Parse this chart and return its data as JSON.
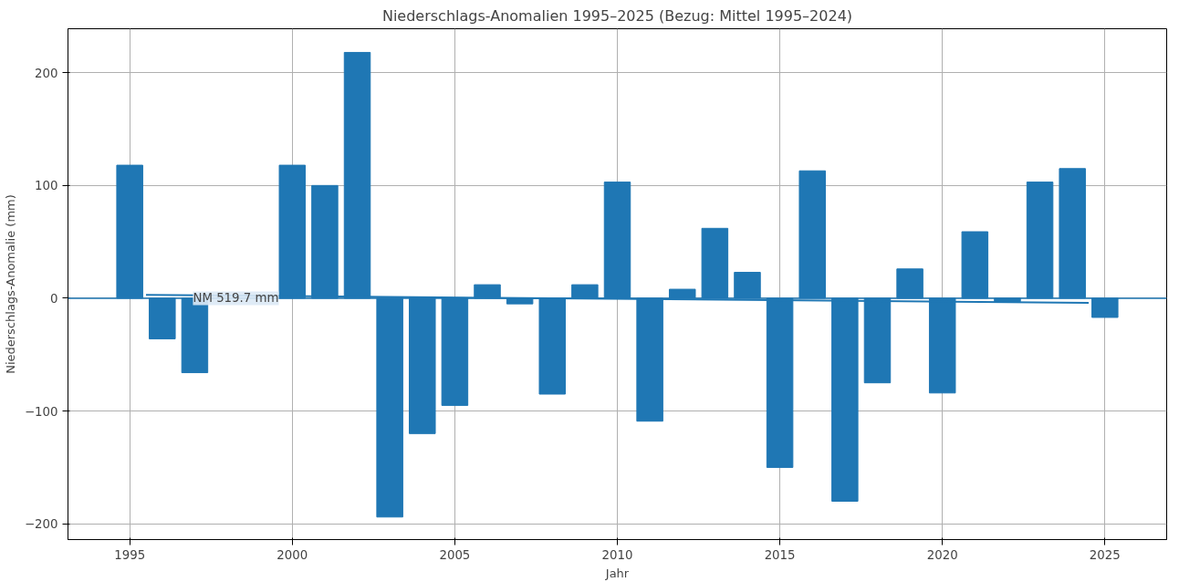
{
  "chart_data": {
    "type": "bar",
    "title": "Niederschlags-Anomalien 1995–2025 (Bezug: Mittel 1995–2024)",
    "xlabel": "Jahr",
    "ylabel": "Niederschlags-Anomalie (mm)",
    "x": [
      1995,
      1996,
      1997,
      1998,
      1999,
      2000,
      2001,
      2002,
      2003,
      2004,
      2005,
      2006,
      2007,
      2008,
      2009,
      2010,
      2011,
      2012,
      2013,
      2014,
      2015,
      2016,
      2017,
      2018,
      2019,
      2020,
      2021,
      2022,
      2023,
      2024,
      2025
    ],
    "series": [
      {
        "color": "#1f77b4",
        "values": [
          118,
          -36,
          -66,
          null,
          null,
          118,
          100,
          218,
          -194,
          -120,
          -95,
          12,
          -5,
          -85,
          12,
          103,
          -109,
          8,
          62,
          23,
          -150,
          113,
          -180,
          -75,
          26,
          -84,
          59,
          -3,
          103,
          115,
          -17
        ]
      },
      {
        "type": "line",
        "color": "#1f77b4",
        "x": [
          1995.5,
          2024.5
        ],
        "values": [
          3,
          -4
        ]
      }
    ],
    "ref_lines": [
      {
        "axis": "y",
        "value": 0,
        "label": "NM 519.7 mm",
        "color": "#1f77b4"
      }
    ],
    "xlim": [
      1993.1,
      2026.9
    ],
    "ylim": [
      -214,
      239
    ],
    "xticks": [
      1995,
      2000,
      2005,
      2010,
      2015,
      2020,
      2025
    ],
    "yticks": [
      -200,
      -100,
      0,
      100,
      200
    ],
    "grid": true
  }
}
